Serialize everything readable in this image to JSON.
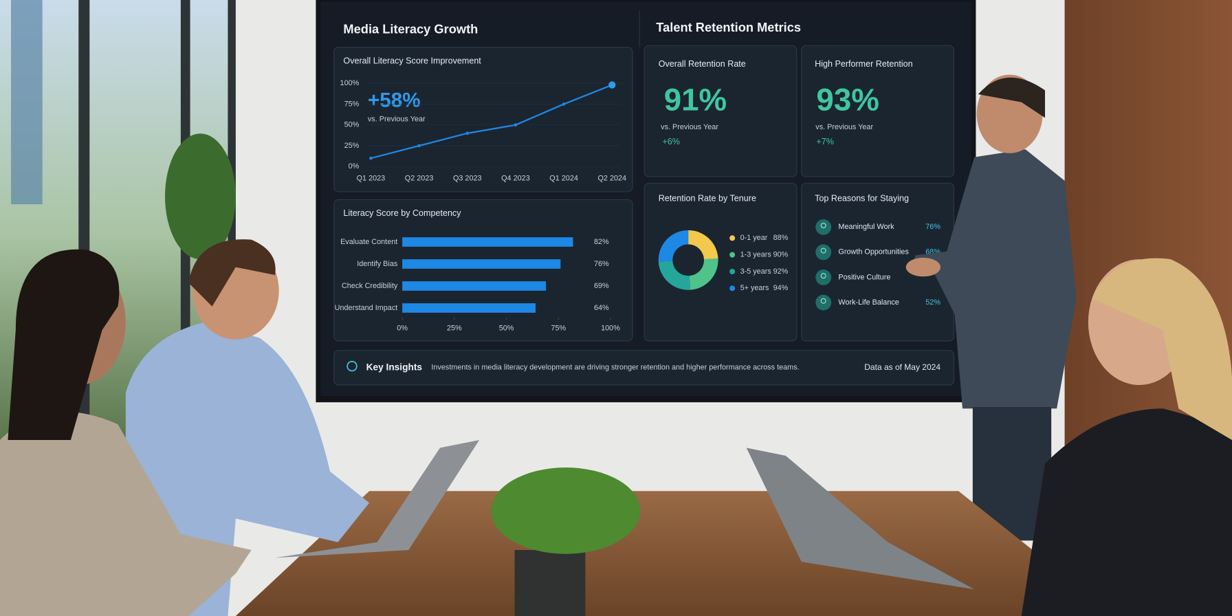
{
  "left_panel": {
    "title": "Media Literacy Growth",
    "line_chart": {
      "type": "line",
      "title": "Overall Literacy Score Improvement",
      "headline": "+58%",
      "headline_note": "vs. Previous Year",
      "categories": [
        "Q1 2023",
        "Q2 2023",
        "Q3 2023",
        "Q4 2023",
        "Q1 2024",
        "Q2 2024"
      ],
      "values": [
        10,
        25,
        40,
        50,
        75,
        98
      ],
      "color": "#1e88e5",
      "ylim": [
        0,
        100
      ],
      "yticks": [
        {
          "value": 0,
          "label": "0%"
        },
        {
          "value": 25,
          "label": "25%"
        },
        {
          "value": 50,
          "label": "50%"
        },
        {
          "value": 75,
          "label": "75%"
        },
        {
          "value": 100,
          "label": "100%"
        }
      ]
    },
    "bar_chart": {
      "type": "bar",
      "title": "Literacy Score by Competency",
      "categories": [
        "Evaluate Content",
        "Identify Bias",
        "Check Credibility",
        "Understand Impact"
      ],
      "values": [
        82,
        76,
        69,
        64
      ],
      "value_labels": [
        "82%",
        "76%",
        "69%",
        "64%"
      ],
      "color": "#1e88e5",
      "xlim": [
        0,
        100
      ],
      "xticks": [
        {
          "value": 0,
          "label": "0%"
        },
        {
          "value": 25,
          "label": "25%"
        },
        {
          "value": 50,
          "label": "50%"
        },
        {
          "value": 75,
          "label": "75%"
        },
        {
          "value": 100,
          "label": "100%"
        }
      ]
    }
  },
  "right_panel": {
    "title": "Talent Retention Metrics",
    "kpis": [
      {
        "title": "Overall Retention Rate",
        "value": "91%",
        "note": "vs. Previous Year",
        "change": "+6%"
      },
      {
        "title": "High Performer Retention",
        "value": "93%",
        "note": "vs. Previous Year",
        "change": "+7%"
      }
    ],
    "tenure_chart": {
      "type": "pie",
      "title": "Retention Rate by Tenure",
      "categories": [
        "0-1 year",
        "1-3 years",
        "3-5 years",
        "5+ years"
      ],
      "values": [
        88,
        90,
        92,
        94
      ],
      "value_labels": [
        "88%",
        "90%",
        "92%",
        "94%"
      ],
      "colors": [
        "#f2c94c",
        "#4fc38a",
        "#26a69a",
        "#1e88e5"
      ]
    },
    "reasons": {
      "title": "Top Reasons for Staying",
      "items": [
        {
          "label": "Meaningful Work",
          "value": "76%"
        },
        {
          "label": "Growth Opportunities",
          "value": "68%"
        },
        {
          "label": "Positive Culture"
        },
        {
          "label": "Work-Life Balance",
          "value": "52%"
        }
      ]
    }
  },
  "insights": {
    "title": "Key Insights",
    "text": "Investments in media literacy development are driving stronger retention and higher performance across teams.",
    "date": "Data as of May 2024"
  }
}
